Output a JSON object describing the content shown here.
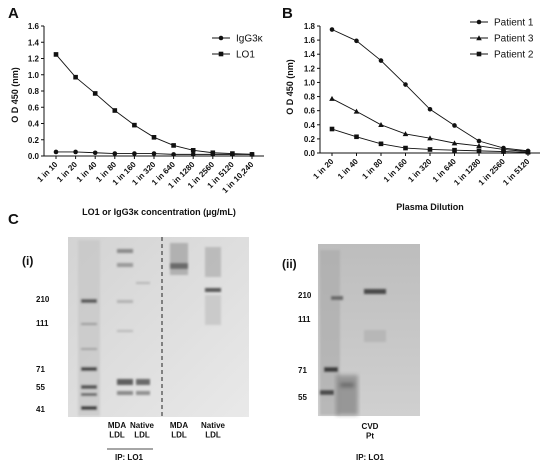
{
  "panel_a": {
    "label": "A",
    "chart_data": {
      "type": "line",
      "xlabel": "LO1 or IgG3κ concentration (µg/mL)",
      "ylabel": "O D 450 (nm)",
      "ylim": [
        0,
        1.6
      ],
      "yticks": [
        "0.0",
        "0.2",
        "0.4",
        "0.6",
        "0.8",
        "1.0",
        "1.2",
        "1.4",
        "1.6"
      ],
      "categories": [
        "1 in 10",
        "1 in 20",
        "1 in 40",
        "1 in 80",
        "1 in 160",
        "1 in 320",
        "1 in 640",
        "1 in 1280",
        "1 in 2560",
        "1 in 5120",
        "1 in 10,240"
      ],
      "series": [
        {
          "name": "IgG3κ",
          "marker": "circle",
          "values": [
            0.05,
            0.05,
            0.04,
            0.03,
            0.03,
            0.03,
            0.02,
            0.02,
            0.02,
            0.02,
            0.02
          ]
        },
        {
          "name": "LO1",
          "marker": "square",
          "values": [
            1.25,
            0.97,
            0.77,
            0.56,
            0.38,
            0.23,
            0.13,
            0.07,
            0.04,
            0.03,
            0.02
          ]
        }
      ],
      "legend": "top-right"
    }
  },
  "panel_b": {
    "label": "B",
    "chart_data": {
      "type": "line",
      "xlabel": "Plasma Dilution",
      "ylabel": "O D 450 (nm)",
      "ylim": [
        0,
        1.8
      ],
      "yticks": [
        "0.0",
        "0.2",
        "0.4",
        "0.6",
        "0.8",
        "1.0",
        "1.2",
        "1.4",
        "1.6",
        "1.8"
      ],
      "categories": [
        "1 in 20",
        "1 in 40",
        "1 in 80",
        "1 in 160",
        "1 in 320",
        "1 in 640",
        "1 in 1280",
        "1 in 2560",
        "1 in 5120"
      ],
      "series": [
        {
          "name": "Patient 1",
          "marker": "circle",
          "values": [
            1.75,
            1.59,
            1.31,
            0.97,
            0.62,
            0.39,
            0.17,
            0.07,
            0.03
          ]
        },
        {
          "name": "Patient 3",
          "marker": "triangle",
          "values": [
            0.77,
            0.59,
            0.4,
            0.27,
            0.21,
            0.14,
            0.1,
            0.05,
            0.02
          ]
        },
        {
          "name": "Patient 2",
          "marker": "square",
          "values": [
            0.34,
            0.23,
            0.13,
            0.07,
            0.05,
            0.04,
            0.03,
            0.02,
            0.01
          ]
        }
      ],
      "legend": "top-right"
    }
  },
  "panel_c": {
    "label": "C",
    "gel_i": {
      "label": "(i)",
      "markers": [
        "210",
        "111",
        "71",
        "55",
        "41"
      ],
      "lanes": [
        "MDA\nLDL",
        "Native\nLDL",
        "MDA\nLDL",
        "Native\nLDL"
      ],
      "ip": "IP: LO1"
    },
    "gel_ii": {
      "label": "(ii)",
      "markers": [
        "210",
        "111",
        "71",
        "55"
      ],
      "lane": "CVD\nPt",
      "ip": "IP: LO1"
    }
  }
}
